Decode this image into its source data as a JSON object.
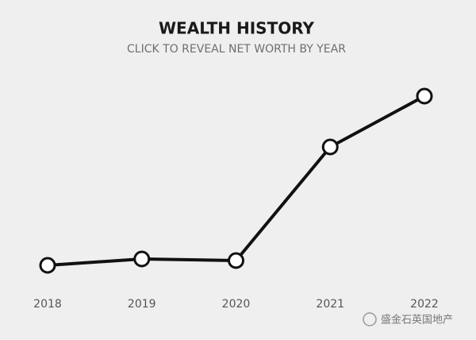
{
  "chart_data": {
    "type": "line",
    "title": "WEALTH HISTORY",
    "subtitle": "CLICK TO REVEAL NET WORTH BY YEAR",
    "categories": [
      "2018",
      "2019",
      "2020",
      "2021",
      "2022"
    ],
    "series": [
      {
        "color": "#111111",
        "values": [
          26,
          34,
          32,
          175,
          239
        ]
      }
    ],
    "ylim": [
      0,
      260
    ],
    "watermark": "盛金石英国地产"
  }
}
